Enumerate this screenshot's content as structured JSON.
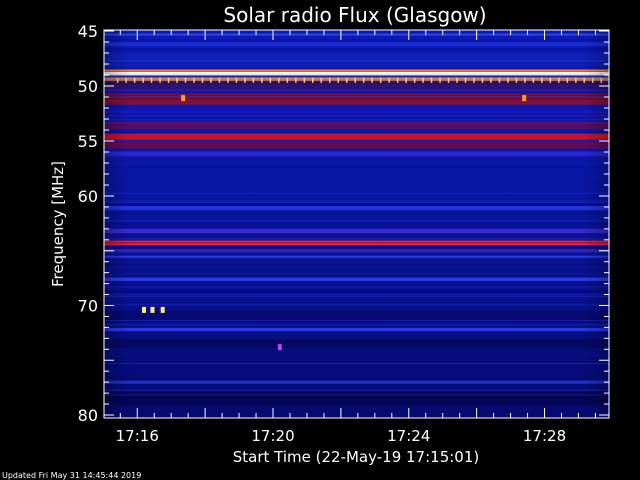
{
  "chart_data": {
    "type": "heatmap",
    "title": "Solar radio Flux (Glasgow)",
    "xlabel": "Start Time (22-May-19 17:15:01)",
    "ylabel": "Frequency [MHz]",
    "footer": "Updated Fri May 31 14:45:44 2019",
    "x_ticks": [
      {
        "label": "17:16",
        "minutes": 16
      },
      {
        "label": "17:20",
        "minutes": 20
      },
      {
        "label": "17:24",
        "minutes": 24
      },
      {
        "label": "17:28",
        "minutes": 28
      }
    ],
    "y_ticks": [
      {
        "label": "45",
        "mhz": 45
      },
      {
        "label": "50",
        "mhz": 50
      },
      {
        "label": "55",
        "mhz": 55
      },
      {
        "label": "60",
        "mhz": 60
      },
      {
        "label": "70",
        "mhz": 70
      },
      {
        "label": "80",
        "mhz": 80
      }
    ],
    "xlim_minutes": [
      15.02,
      29.9
    ],
    "ylim_mhz": [
      45,
      80
    ],
    "background_color": "#0a12a0",
    "bands": [
      {
        "mhz": 45.3,
        "width": 0.25,
        "color": "#2a46f0"
      },
      {
        "mhz": 46.2,
        "width": 0.35,
        "color": "#1a2fd8"
      },
      {
        "mhz": 47.5,
        "width": 1.0,
        "color": "#1020b8"
      },
      {
        "mhz": 48.9,
        "width": 0.35,
        "color": "#ffffff"
      },
      {
        "mhz": 48.6,
        "width": 0.2,
        "color": "#ff9020"
      },
      {
        "mhz": 49.35,
        "width": 0.35,
        "color": "#ff9a30"
      },
      {
        "mhz": 49.8,
        "width": 0.3,
        "color": "#3a1060"
      },
      {
        "mhz": 50.2,
        "width": 0.5,
        "color": "#2a1278"
      },
      {
        "mhz": 51.2,
        "width": 1.0,
        "color": "#8a1030"
      },
      {
        "mhz": 52.5,
        "width": 0.6,
        "color": "#1a18b8"
      },
      {
        "mhz": 53.6,
        "width": 0.7,
        "color": "#5a0c60"
      },
      {
        "mhz": 54.6,
        "width": 0.55,
        "color": "#e01010"
      },
      {
        "mhz": 55.4,
        "width": 0.6,
        "color": "#6a0a50"
      },
      {
        "mhz": 56.2,
        "width": 0.5,
        "color": "#2a2ad8"
      },
      {
        "mhz": 61.1,
        "width": 0.4,
        "color": "#2236e0"
      },
      {
        "mhz": 63.2,
        "width": 0.4,
        "color": "#3a2ad0"
      },
      {
        "mhz": 64.3,
        "width": 0.45,
        "color": "#ff2030"
      },
      {
        "mhz": 65.0,
        "width": 0.3,
        "color": "#3a22b0"
      },
      {
        "mhz": 65.6,
        "width": 0.3,
        "color": "#2a40f0"
      },
      {
        "mhz": 67.6,
        "width": 0.3,
        "color": "#3040e8"
      },
      {
        "mhz": 71.0,
        "width": 1.0,
        "color": "#060a70"
      },
      {
        "mhz": 72.2,
        "width": 0.3,
        "color": "#2a3af0"
      },
      {
        "mhz": 73.5,
        "width": 0.8,
        "color": "#050860"
      },
      {
        "mhz": 75.5,
        "width": 0.9,
        "color": "#070b80"
      },
      {
        "mhz": 77.0,
        "width": 0.3,
        "color": "#2030c8"
      },
      {
        "mhz": 78.5,
        "width": 1.2,
        "color": "#040650"
      }
    ],
    "spots": [
      {
        "minutes": 16.2,
        "mhz": 70.4,
        "color": "#fff060"
      },
      {
        "minutes": 16.45,
        "mhz": 70.4,
        "color": "#fff060"
      },
      {
        "minutes": 16.75,
        "mhz": 70.4,
        "color": "#fff060"
      },
      {
        "minutes": 17.35,
        "mhz": 51.1,
        "color": "#ffa020"
      },
      {
        "minutes": 27.4,
        "mhz": 51.1,
        "color": "#ffa020"
      },
      {
        "minutes": 20.2,
        "mhz": 73.8,
        "color": "#c040ff"
      }
    ]
  }
}
